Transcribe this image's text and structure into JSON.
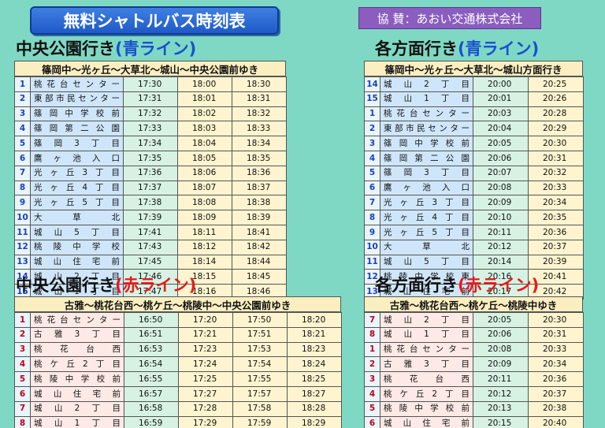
{
  "title": "無料シャトルバス時刻表",
  "sponsor": "協 賛：あおい交通株式会社",
  "sections": {
    "cb": {
      "heading_prefix": "中央公園行き",
      "heading_line": "(青ライン)",
      "route": "篠岡中～光ヶ丘～大草北～城山～中央公園前ゆき",
      "rows": [
        {
          "num": "1",
          "stop": "桃花台センター",
          "times": [
            "17:30",
            "18:00",
            "18:30"
          ]
        },
        {
          "num": "2",
          "stop": "東部市民センター",
          "times": [
            "17:31",
            "18:01",
            "18:31"
          ]
        },
        {
          "num": "3",
          "stop": "篠岡中学校前",
          "times": [
            "17:32",
            "18:02",
            "18:32"
          ]
        },
        {
          "num": "4",
          "stop": "篠岡第二公園",
          "times": [
            "17:33",
            "18:03",
            "18:33"
          ]
        },
        {
          "num": "5",
          "stop": "篠岡3丁目",
          "times": [
            "17:34",
            "18:04",
            "18:34"
          ]
        },
        {
          "num": "6",
          "stop": "鷹ヶ池入口",
          "times": [
            "17:35",
            "18:05",
            "18:35"
          ]
        },
        {
          "num": "7",
          "stop": "光ヶ丘3丁目",
          "times": [
            "17:36",
            "18:06",
            "18:36"
          ]
        },
        {
          "num": "8",
          "stop": "光ヶ丘4丁目",
          "times": [
            "17:37",
            "18:07",
            "18:37"
          ]
        },
        {
          "num": "9",
          "stop": "光ヶ丘5丁目",
          "times": [
            "17:38",
            "18:08",
            "18:38"
          ]
        },
        {
          "num": "10",
          "stop": "大草北",
          "times": [
            "17:39",
            "18:09",
            "18:39"
          ]
        },
        {
          "num": "11",
          "stop": "城山5丁目",
          "times": [
            "17:41",
            "18:11",
            "18:41"
          ]
        },
        {
          "num": "12",
          "stop": "桃陵中学校",
          "times": [
            "17:43",
            "18:12",
            "18:42"
          ]
        },
        {
          "num": "13",
          "stop": "城山住宅前",
          "times": [
            "17:45",
            "18:14",
            "18:44"
          ]
        },
        {
          "num": "14",
          "stop": "城山2丁目",
          "times": [
            "17:46",
            "18:15",
            "18:45"
          ]
        },
        {
          "num": "15",
          "stop": "城山1丁目",
          "times": [
            "17:47",
            "18:16",
            "18:46"
          ]
        }
      ]
    },
    "cr": {
      "heading_prefix": "中央公園行き",
      "heading_line": "(赤ライン)",
      "route": "古雅～桃花台西～桃ケ丘～桃陵中～中央公園前ゆき",
      "rows": [
        {
          "num": "1",
          "stop": "桃花台センター",
          "times": [
            "16:50",
            "17:20",
            "17:50",
            "18:20"
          ]
        },
        {
          "num": "2",
          "stop": "古雅3丁目",
          "times": [
            "16:51",
            "17:21",
            "17:51",
            "18:21"
          ]
        },
        {
          "num": "3",
          "stop": "桃花台西",
          "times": [
            "16:53",
            "17:23",
            "17:53",
            "18:23"
          ]
        },
        {
          "num": "4",
          "stop": "桃ケ丘2丁目",
          "times": [
            "16:54",
            "17:24",
            "17:54",
            "18:24"
          ]
        },
        {
          "num": "5",
          "stop": "桃陵中学校前",
          "times": [
            "16:55",
            "17:25",
            "17:55",
            "18:25"
          ]
        },
        {
          "num": "6",
          "stop": "城山住宅前",
          "times": [
            "16:57",
            "17:27",
            "17:57",
            "18:27"
          ]
        },
        {
          "num": "7",
          "stop": "城山2丁目",
          "times": [
            "16:58",
            "17:28",
            "17:58",
            "18:28"
          ]
        },
        {
          "num": "8",
          "stop": "城山1丁目",
          "times": [
            "16:59",
            "17:29",
            "17:59",
            "18:29"
          ]
        }
      ]
    },
    "db": {
      "heading_prefix": "各方面行き",
      "heading_line": "(青ライン)",
      "route": "篠岡中～光ヶ丘～大草北～城山方面行き",
      "rows": [
        {
          "num": "14",
          "stop": "城山2丁目",
          "times": [
            "20:00",
            "20:25"
          ]
        },
        {
          "num": "15",
          "stop": "城山1丁目",
          "times": [
            "20:01",
            "20:26"
          ]
        },
        {
          "num": "1",
          "stop": "桃花台センター",
          "times": [
            "20:03",
            "20:28"
          ]
        },
        {
          "num": "2",
          "stop": "東部市民センター",
          "times": [
            "20:04",
            "20:29"
          ]
        },
        {
          "num": "3",
          "stop": "篠岡中学校前",
          "times": [
            "20:05",
            "20:30"
          ]
        },
        {
          "num": "4",
          "stop": "篠岡第二公園",
          "times": [
            "20:06",
            "20:31"
          ]
        },
        {
          "num": "5",
          "stop": "篠岡3丁目",
          "times": [
            "20:07",
            "20:32"
          ]
        },
        {
          "num": "6",
          "stop": "鷹ヶ池入口",
          "times": [
            "20:08",
            "20:33"
          ]
        },
        {
          "num": "7",
          "stop": "光ヶ丘3丁目",
          "times": [
            "20:09",
            "20:34"
          ]
        },
        {
          "num": "8",
          "stop": "光ヶ丘4丁目",
          "times": [
            "20:10",
            "20:35"
          ]
        },
        {
          "num": "9",
          "stop": "光ヶ丘5丁目",
          "times": [
            "20:11",
            "20:36"
          ]
        },
        {
          "num": "10",
          "stop": "大草北",
          "times": [
            "20:12",
            "20:37"
          ]
        },
        {
          "num": "11",
          "stop": "城山5丁目",
          "times": [
            "20:14",
            "20:39"
          ]
        },
        {
          "num": "12",
          "stop": "桃陵中学校東",
          "times": [
            "20:16",
            "20:41"
          ]
        },
        {
          "num": "13",
          "stop": "城山住宅前",
          "times": [
            "20:17",
            "20:42"
          ]
        }
      ]
    },
    "dr": {
      "heading_prefix": "各方面行き",
      "heading_line": "(赤ライン)",
      "route": "古雅～桃花台西～桃ケ丘～桃陵中ゆき",
      "rows": [
        {
          "num": "7",
          "stop": "城山2丁目",
          "times": [
            "20:05",
            "20:30"
          ]
        },
        {
          "num": "8",
          "stop": "城山1丁目",
          "times": [
            "20:06",
            "20:31"
          ]
        },
        {
          "num": "1",
          "stop": "桃花台センター",
          "times": [
            "20:08",
            "20:33"
          ]
        },
        {
          "num": "2",
          "stop": "古雅3丁目",
          "times": [
            "20:09",
            "20:34"
          ]
        },
        {
          "num": "3",
          "stop": "桃花台西",
          "times": [
            "20:11",
            "20:36"
          ]
        },
        {
          "num": "4",
          "stop": "桃ケ丘2丁目",
          "times": [
            "20:12",
            "20:37"
          ]
        },
        {
          "num": "5",
          "stop": "桃陵中学校前",
          "times": [
            "20:13",
            "20:38"
          ]
        },
        {
          "num": "6",
          "stop": "城山住宅前",
          "times": [
            "20:15",
            "20:40"
          ]
        }
      ]
    }
  }
}
